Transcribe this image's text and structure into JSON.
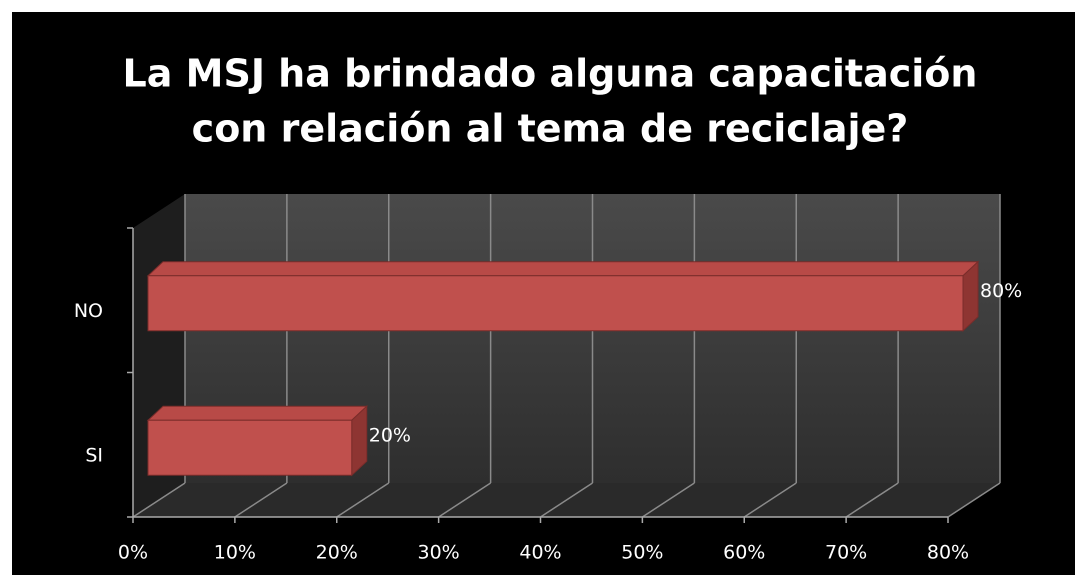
{
  "chart_data": {
    "type": "bar3d_horizontal",
    "title": [
      "La MSJ ha brindado alguna capacitación",
      "con relación al tema de reciclaje?"
    ],
    "categories": [
      "NO",
      "SI"
    ],
    "values": [
      80,
      20
    ],
    "value_labels": [
      "80%",
      "20%"
    ],
    "color": "#c0504d",
    "xlim": [
      0,
      80
    ],
    "xticks": [
      {
        "value": 0,
        "label": "0%"
      },
      {
        "value": 10,
        "label": "10%"
      },
      {
        "value": 20,
        "label": "20%"
      },
      {
        "value": 30,
        "label": "30%"
      },
      {
        "value": 40,
        "label": "40%"
      },
      {
        "value": 50,
        "label": "50%"
      },
      {
        "value": 60,
        "label": "60%"
      },
      {
        "value": 70,
        "label": "70%"
      },
      {
        "value": 80,
        "label": "80%"
      }
    ],
    "grid": true
  }
}
